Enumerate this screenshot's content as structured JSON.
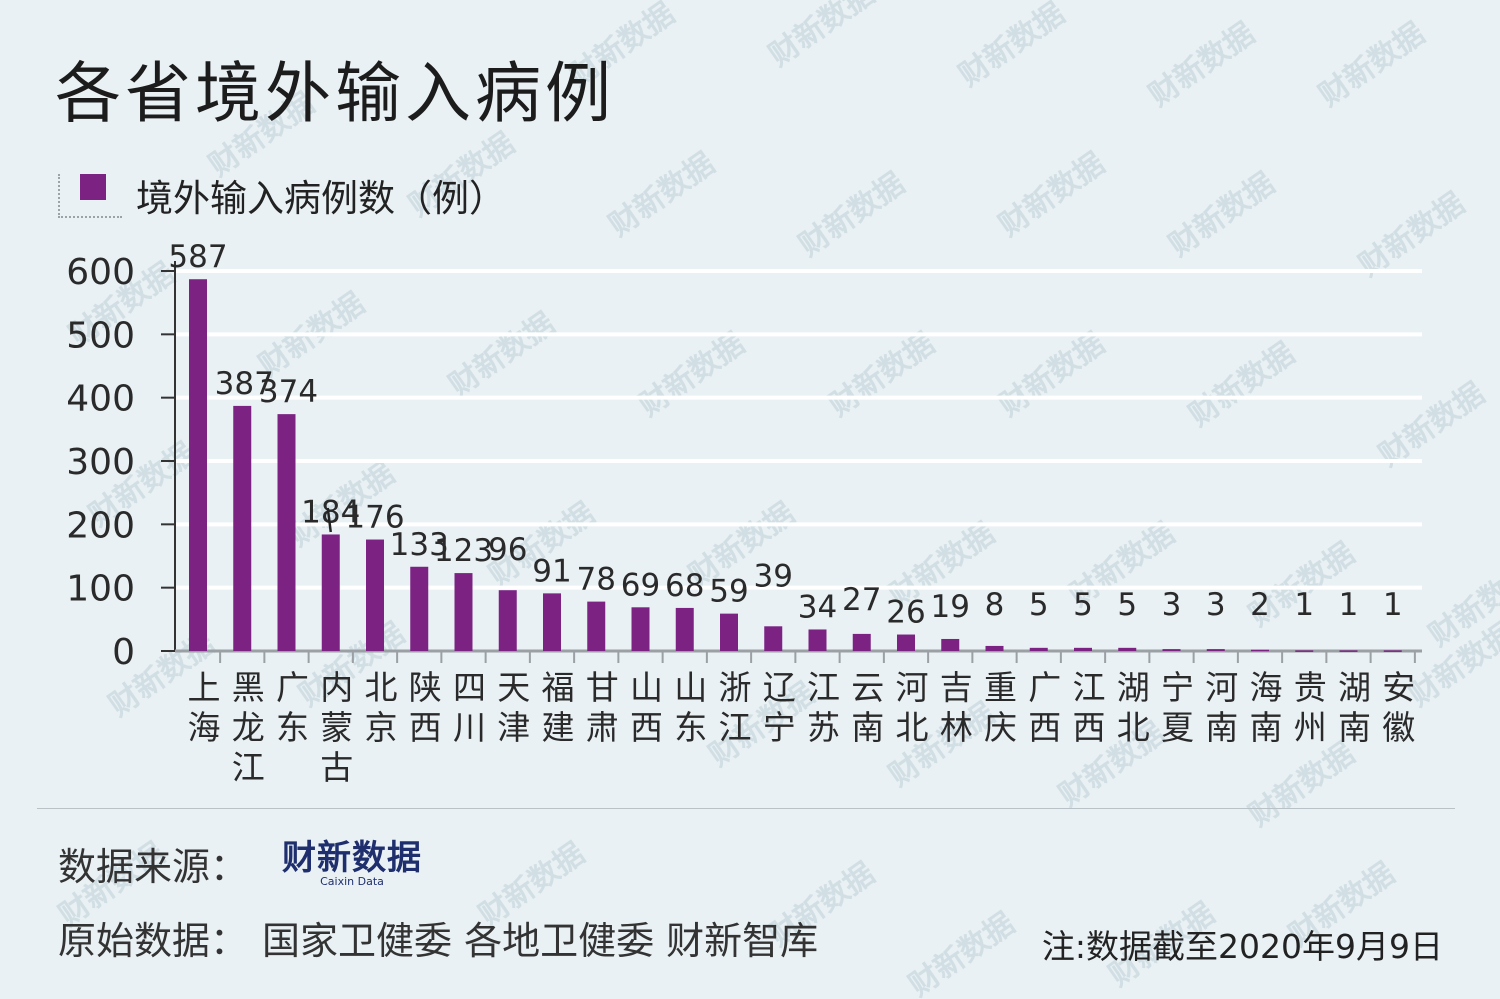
{
  "title": "各省境外输入病例",
  "legend_label": "境外输入病例数（例）",
  "footer": {
    "source_label": "数据来源：",
    "logo_cn": "财新数据",
    "logo_en": "Caixin Data",
    "raw_label": "原始数据：",
    "raw_value": "国家卫健委  各地卫健委  财新智库",
    "note": "注:数据截至2020年9月9日"
  },
  "watermark_text": "财新数据",
  "colors": {
    "bar": "#7b2283",
    "background": "#e9f1f4",
    "grid": "#ffffff"
  },
  "chart_data": {
    "type": "bar",
    "title": "各省境外输入病例",
    "ylim": [
      0,
      600
    ],
    "yticks": [
      0,
      100,
      200,
      300,
      400,
      500,
      600
    ],
    "grid": true,
    "legend_position": "top-left",
    "categories": [
      "上海",
      "黑龙江",
      "广东",
      "内蒙古",
      "北京",
      "陕西",
      "四川",
      "天津",
      "福建",
      "甘肃",
      "山西",
      "山东",
      "浙江",
      "辽宁",
      "江苏",
      "云南",
      "河北",
      "吉林",
      "重庆",
      "广西",
      "江西",
      "湖北",
      "宁夏",
      "河南",
      "海南",
      "贵州",
      "湖南",
      "安徽"
    ],
    "series": [
      {
        "name": "境外输入病例数（例）",
        "values": [
          587,
          387,
          374,
          184,
          176,
          133,
          123,
          96,
          91,
          78,
          69,
          68,
          59,
          39,
          34,
          27,
          26,
          19,
          8,
          5,
          5,
          5,
          3,
          3,
          2,
          1,
          1,
          1
        ]
      }
    ]
  }
}
